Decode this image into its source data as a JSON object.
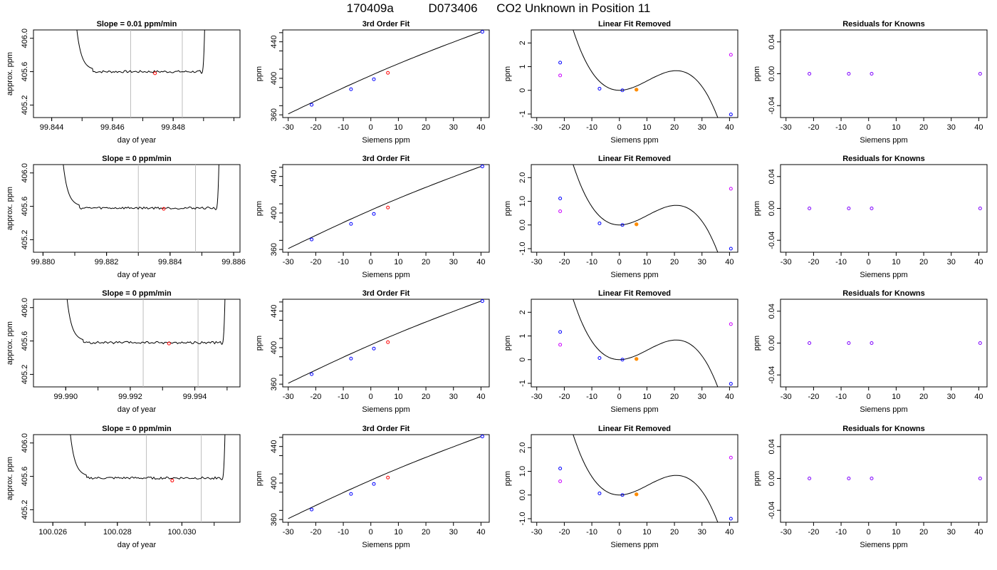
{
  "header": {
    "run_id": "170409a",
    "tank_id": "D073406",
    "description": "CO2 Unknown in Position  11"
  },
  "colors": {
    "axis": "#000000",
    "curve": "#000000",
    "vline": "#bdbdbd",
    "unknown_point": "#ff0000",
    "known_point": "#0000ff",
    "reference_point": "#ff8c00",
    "residual_point": "#cc00ff",
    "residual_known": "#7f00ff"
  },
  "chart_data": [
    {
      "type": "line",
      "row": 1,
      "title": "Slope =  0.01  ppm/min",
      "xlabel": "day of year",
      "ylabel": "approx. ppm",
      "xlim": [
        99.8434,
        99.8502
      ],
      "ylim": [
        405.05,
        406.1
      ],
      "xticks": [
        "99.844",
        "99.846",
        "99.848"
      ],
      "xtick_values": [
        99.844,
        99.846,
        99.848
      ],
      "yticks": [
        "405.2",
        "405.6",
        "406.0"
      ],
      "ytick_values": [
        405.2,
        405.6,
        406.0
      ],
      "trace": {
        "x0": 99.8452,
        "x1": 99.849,
        "baseline": 405.6
      },
      "vlines": [
        99.8466,
        99.8483
      ],
      "marker": {
        "x": 99.8474,
        "y": 405.58
      }
    },
    {
      "type": "line",
      "row": 1,
      "title": "3rd Order Fit",
      "xlabel": "Siemens ppm",
      "ylabel": "ppm",
      "xlim": [
        -32,
        43
      ],
      "ylim": [
        357,
        453
      ],
      "xticks": [
        "-30",
        "-20",
        "-10",
        "0",
        "10",
        "20",
        "30",
        "40"
      ],
      "xtick_values": [
        -30,
        -20,
        -10,
        0,
        10,
        20,
        30,
        40
      ],
      "yticks": [
        "360",
        "400",
        "440"
      ],
      "ytick_values": [
        360,
        400,
        440
      ],
      "curve": {
        "x_range": [
          -30,
          40
        ],
        "y_range": [
          361,
          451
        ]
      },
      "known_points": [
        {
          "x": -21.5,
          "y": 371
        },
        {
          "x": -7.2,
          "y": 388
        },
        {
          "x": 1.1,
          "y": 399
        },
        {
          "x": 40.5,
          "y": 451
        }
      ],
      "unknown_point": {
        "x": 6.2,
        "y": 406
      }
    },
    {
      "type": "line",
      "row": 1,
      "title": "Linear Fit Removed",
      "xlabel": "Siemens ppm",
      "ylabel": "ppm",
      "xlim": [
        -32,
        43
      ],
      "ylim": [
        -1.15,
        2.55
      ],
      "xticks": [
        "-30",
        "-20",
        "-10",
        "0",
        "10",
        "20",
        "30",
        "40"
      ],
      "xtick_values": [
        -30,
        -20,
        -10,
        0,
        10,
        20,
        30,
        40
      ],
      "yticks": [
        "-1",
        "0",
        "1",
        "2"
      ],
      "ytick_values": [
        -1,
        0,
        1,
        2
      ],
      "curve_cubic": {
        "a": 0.001158,
        "b": -0.035,
        "c": 0,
        "d": 0,
        "x_range": [
          -30,
          40
        ]
      },
      "known_points": [
        {
          "x": -21.5,
          "y": 1.17
        },
        {
          "x": -7.2,
          "y": 0.07
        },
        {
          "x": 1.1,
          "y": 0.0
        },
        {
          "x": 40.5,
          "y": -1.02
        }
      ],
      "reference_point": {
        "x": 6.2,
        "y": 0.03
      },
      "residual_points": [
        {
          "x": -21.5,
          "y": 0.63
        },
        {
          "x": 40.5,
          "y": 1.5
        }
      ]
    },
    {
      "type": "scatter",
      "row": 1,
      "title": "Residuals for Knowns",
      "xlabel": "Siemens ppm",
      "ylabel": "ppm",
      "xlim": [
        -32,
        43
      ],
      "ylim": [
        -0.055,
        0.055
      ],
      "xticks": [
        "-30",
        "-20",
        "-10",
        "0",
        "10",
        "20",
        "30",
        "40"
      ],
      "xtick_values": [
        -30,
        -20,
        -10,
        0,
        10,
        20,
        30,
        40
      ],
      "yticks": [
        "-0.04",
        "0.00",
        "0.04"
      ],
      "ytick_values": [
        -0.04,
        0,
        0.04
      ],
      "points": [
        {
          "x": -21.5,
          "y": 0
        },
        {
          "x": -7.2,
          "y": 0
        },
        {
          "x": 1.1,
          "y": 0
        },
        {
          "x": 40.5,
          "y": 0
        }
      ]
    },
    {
      "type": "line",
      "row": 2,
      "title": "Slope =  0  ppm/min",
      "xlabel": "day of year",
      "ylabel": "approx. ppm",
      "xlim": [
        99.8797,
        99.8862
      ],
      "ylim": [
        405.05,
        406.1
      ],
      "xticks": [
        "99.880",
        "99.882",
        "99.884",
        "99.886"
      ],
      "xtick_values": [
        99.88,
        99.882,
        99.884,
        99.886
      ],
      "yticks": [
        "405.2",
        "405.6",
        "406.0"
      ],
      "ytick_values": [
        405.2,
        405.6,
        406.0
      ],
      "trace": {
        "x0": 99.881,
        "x1": 99.8855,
        "baseline": 405.58
      },
      "vlines": [
        99.883,
        99.8848
      ],
      "marker": {
        "x": 99.8838,
        "y": 405.57
      }
    },
    {
      "type": "line",
      "row": 2,
      "title": "3rd Order Fit",
      "xlabel": "Siemens ppm",
      "ylabel": "ppm",
      "xlim": [
        -32,
        43
      ],
      "ylim": [
        357,
        453
      ],
      "xticks": [
        "-30",
        "-20",
        "-10",
        "0",
        "10",
        "20",
        "30",
        "40"
      ],
      "xtick_values": [
        -30,
        -20,
        -10,
        0,
        10,
        20,
        30,
        40
      ],
      "yticks": [
        "360",
        "400",
        "440"
      ],
      "ytick_values": [
        360,
        400,
        440
      ],
      "curve": {
        "x_range": [
          -30,
          40
        ],
        "y_range": [
          361,
          451
        ]
      },
      "known_points": [
        {
          "x": -21.5,
          "y": 371
        },
        {
          "x": -7.2,
          "y": 388
        },
        {
          "x": 1.1,
          "y": 399
        },
        {
          "x": 40.5,
          "y": 451
        }
      ],
      "unknown_point": {
        "x": 6.2,
        "y": 406
      }
    },
    {
      "type": "line",
      "row": 2,
      "title": "Linear Fit Removed",
      "xlabel": "Siemens ppm",
      "ylabel": "ppm",
      "xlim": [
        -32,
        43
      ],
      "ylim": [
        -1.15,
        2.55
      ],
      "xticks": [
        "-30",
        "-20",
        "-10",
        "0",
        "10",
        "20",
        "30",
        "40"
      ],
      "xtick_values": [
        -30,
        -20,
        -10,
        0,
        10,
        20,
        30,
        40
      ],
      "yticks": [
        "-1.0",
        "0.0",
        "1.0",
        "2.0"
      ],
      "ytick_values": [
        -1,
        0,
        1,
        2
      ],
      "curve_cubic": {
        "a": 0.001158,
        "b": -0.035,
        "c": 0,
        "d": 0,
        "x_range": [
          -30,
          40
        ]
      },
      "known_points": [
        {
          "x": -21.5,
          "y": 1.12
        },
        {
          "x": -7.2,
          "y": 0.07
        },
        {
          "x": 1.1,
          "y": 0.0
        },
        {
          "x": 40.5,
          "y": -1.0
        }
      ],
      "reference_point": {
        "x": 6.2,
        "y": 0.03
      },
      "residual_points": [
        {
          "x": -21.5,
          "y": 0.58
        },
        {
          "x": 40.5,
          "y": 1.53
        }
      ]
    },
    {
      "type": "scatter",
      "row": 2,
      "title": "Residuals for Knowns",
      "xlabel": "Siemens ppm",
      "ylabel": "ppm",
      "xlim": [
        -32,
        43
      ],
      "ylim": [
        -0.055,
        0.055
      ],
      "xticks": [
        "-30",
        "-20",
        "-10",
        "0",
        "10",
        "20",
        "30",
        "40"
      ],
      "xtick_values": [
        -30,
        -20,
        -10,
        0,
        10,
        20,
        30,
        40
      ],
      "yticks": [
        "-0.04",
        "0.00",
        "0.04"
      ],
      "ytick_values": [
        -0.04,
        0,
        0.04
      ],
      "points": [
        {
          "x": -21.5,
          "y": 0
        },
        {
          "x": -7.2,
          "y": 0
        },
        {
          "x": 1.1,
          "y": 0
        },
        {
          "x": 40.5,
          "y": 0
        }
      ]
    },
    {
      "type": "line",
      "row": 3,
      "title": "Slope =  0  ppm/min",
      "xlabel": "day of year",
      "ylabel": "approx. ppm",
      "xlim": [
        99.989,
        99.9954
      ],
      "ylim": [
        405.05,
        406.1
      ],
      "xticks": [
        "99.990",
        "99.992",
        "99.994"
      ],
      "xtick_values": [
        99.99,
        99.992,
        99.994
      ],
      "yticks": [
        "405.2",
        "405.6",
        "406.0"
      ],
      "ytick_values": [
        405.2,
        405.6,
        406.0
      ],
      "trace": {
        "x0": 99.9904,
        "x1": 99.9949,
        "baseline": 405.58
      },
      "vlines": [
        99.9924,
        99.9941
      ],
      "marker": {
        "x": 99.9932,
        "y": 405.57
      }
    },
    {
      "type": "line",
      "row": 3,
      "title": "3rd Order Fit",
      "xlabel": "Siemens ppm",
      "ylabel": "ppm",
      "xlim": [
        -32,
        43
      ],
      "ylim": [
        357,
        453
      ],
      "xticks": [
        "-30",
        "-20",
        "-10",
        "0",
        "10",
        "20",
        "30",
        "40"
      ],
      "xtick_values": [
        -30,
        -20,
        -10,
        0,
        10,
        20,
        30,
        40
      ],
      "yticks": [
        "360",
        "400",
        "440"
      ],
      "ytick_values": [
        360,
        400,
        440
      ],
      "curve": {
        "x_range": [
          -30,
          40
        ],
        "y_range": [
          361,
          451
        ]
      },
      "known_points": [
        {
          "x": -21.5,
          "y": 371
        },
        {
          "x": -7.2,
          "y": 388
        },
        {
          "x": 1.1,
          "y": 399
        },
        {
          "x": 40.5,
          "y": 451
        }
      ],
      "unknown_point": {
        "x": 6.2,
        "y": 406
      }
    },
    {
      "type": "line",
      "row": 3,
      "title": "Linear Fit Removed",
      "xlabel": "Siemens ppm",
      "ylabel": "ppm",
      "xlim": [
        -32,
        43
      ],
      "ylim": [
        -1.15,
        2.55
      ],
      "xticks": [
        "-30",
        "-20",
        "-10",
        "0",
        "10",
        "20",
        "30",
        "40"
      ],
      "xtick_values": [
        -30,
        -20,
        -10,
        0,
        10,
        20,
        30,
        40
      ],
      "yticks": [
        "-1",
        "0",
        "1",
        "2"
      ],
      "ytick_values": [
        -1,
        0,
        1,
        2
      ],
      "curve_cubic": {
        "a": 0.001158,
        "b": -0.035,
        "c": 0,
        "d": 0,
        "x_range": [
          -30,
          40
        ]
      },
      "known_points": [
        {
          "x": -21.5,
          "y": 1.17
        },
        {
          "x": -7.2,
          "y": 0.07
        },
        {
          "x": 1.1,
          "y": 0.0
        },
        {
          "x": 40.5,
          "y": -1.02
        }
      ],
      "reference_point": {
        "x": 6.2,
        "y": 0.03
      },
      "residual_points": [
        {
          "x": -21.5,
          "y": 0.63
        },
        {
          "x": 40.5,
          "y": 1.5
        }
      ]
    },
    {
      "type": "scatter",
      "row": 3,
      "title": "Residuals for Knowns",
      "xlabel": "Siemens ppm",
      "ylabel": "ppm",
      "xlim": [
        -32,
        43
      ],
      "ylim": [
        -0.055,
        0.055
      ],
      "xticks": [
        "-30",
        "-20",
        "-10",
        "0",
        "10",
        "20",
        "30",
        "40"
      ],
      "xtick_values": [
        -30,
        -20,
        -10,
        0,
        10,
        20,
        30,
        40
      ],
      "yticks": [
        "-0.04",
        "0.00",
        "0.04"
      ],
      "ytick_values": [
        -0.04,
        0,
        0.04
      ],
      "points": [
        {
          "x": -21.5,
          "y": 0
        },
        {
          "x": -7.2,
          "y": 0
        },
        {
          "x": 1.1,
          "y": 0
        },
        {
          "x": 40.5,
          "y": 0
        }
      ]
    },
    {
      "type": "line",
      "row": 4,
      "title": "Slope =  0  ppm/min",
      "xlabel": "day of year",
      "ylabel": "approx. ppm",
      "xlim": [
        100.0254,
        100.0318
      ],
      "ylim": [
        405.05,
        406.1
      ],
      "xticks": [
        "100.026",
        "100.028",
        "100.030"
      ],
      "xtick_values": [
        100.026,
        100.028,
        100.03
      ],
      "yticks": [
        "405.2",
        "405.6",
        "406.0"
      ],
      "ytick_values": [
        405.2,
        405.6,
        406.0
      ],
      "trace": {
        "x0": 100.0269,
        "x1": 100.0313,
        "baseline": 405.58
      },
      "vlines": [
        100.0289,
        100.0306
      ],
      "marker": {
        "x": 100.0297,
        "y": 405.55
      }
    },
    {
      "type": "line",
      "row": 4,
      "title": "3rd Order Fit",
      "xlabel": "Siemens ppm",
      "ylabel": "ppm",
      "xlim": [
        -32,
        43
      ],
      "ylim": [
        357,
        453
      ],
      "xticks": [
        "-30",
        "-20",
        "-10",
        "0",
        "10",
        "20",
        "30",
        "40"
      ],
      "xtick_values": [
        -30,
        -20,
        -10,
        0,
        10,
        20,
        30,
        40
      ],
      "yticks": [
        "360",
        "400",
        "440"
      ],
      "ytick_values": [
        360,
        400,
        440
      ],
      "curve": {
        "x_range": [
          -30,
          40
        ],
        "y_range": [
          361,
          451
        ]
      },
      "known_points": [
        {
          "x": -21.5,
          "y": 371
        },
        {
          "x": -7.2,
          "y": 388
        },
        {
          "x": 1.1,
          "y": 399
        },
        {
          "x": 40.5,
          "y": 451
        }
      ],
      "unknown_point": {
        "x": 6.2,
        "y": 406
      }
    },
    {
      "type": "line",
      "row": 4,
      "title": "Linear Fit Removed",
      "xlabel": "Siemens ppm",
      "ylabel": "ppm",
      "xlim": [
        -32,
        43
      ],
      "ylim": [
        -1.15,
        2.55
      ],
      "xticks": [
        "-30",
        "-20",
        "-10",
        "0",
        "10",
        "20",
        "30",
        "40"
      ],
      "xtick_values": [
        -30,
        -20,
        -10,
        0,
        10,
        20,
        30,
        40
      ],
      "yticks": [
        "-1.0",
        "0.0",
        "1.0",
        "2.0"
      ],
      "ytick_values": [
        -1,
        0,
        1,
        2
      ],
      "curve_cubic": {
        "a": 0.001158,
        "b": -0.035,
        "c": 0,
        "d": 0,
        "x_range": [
          -30,
          40
        ]
      },
      "known_points": [
        {
          "x": -21.5,
          "y": 1.12
        },
        {
          "x": -7.2,
          "y": 0.07
        },
        {
          "x": 1.1,
          "y": 0.0
        },
        {
          "x": 40.5,
          "y": -1.0
        }
      ],
      "reference_point": {
        "x": 6.2,
        "y": 0.03
      },
      "residual_points": [
        {
          "x": -21.5,
          "y": 0.58
        },
        {
          "x": 40.5,
          "y": 1.58
        }
      ]
    },
    {
      "type": "scatter",
      "row": 4,
      "title": "Residuals for Knowns",
      "xlabel": "Siemens ppm",
      "ylabel": "ppm",
      "xlim": [
        -32,
        43
      ],
      "ylim": [
        -0.055,
        0.055
      ],
      "xticks": [
        "-30",
        "-20",
        "-10",
        "0",
        "10",
        "20",
        "30",
        "40"
      ],
      "xtick_values": [
        -30,
        -20,
        -10,
        0,
        10,
        20,
        30,
        40
      ],
      "yticks": [
        "-0.04",
        "0.00",
        "0.04"
      ],
      "ytick_values": [
        -0.04,
        0,
        0.04
      ],
      "points": [
        {
          "x": -21.5,
          "y": 0
        },
        {
          "x": -7.2,
          "y": 0
        },
        {
          "x": 1.1,
          "y": 0
        },
        {
          "x": 40.5,
          "y": 0
        }
      ]
    }
  ]
}
